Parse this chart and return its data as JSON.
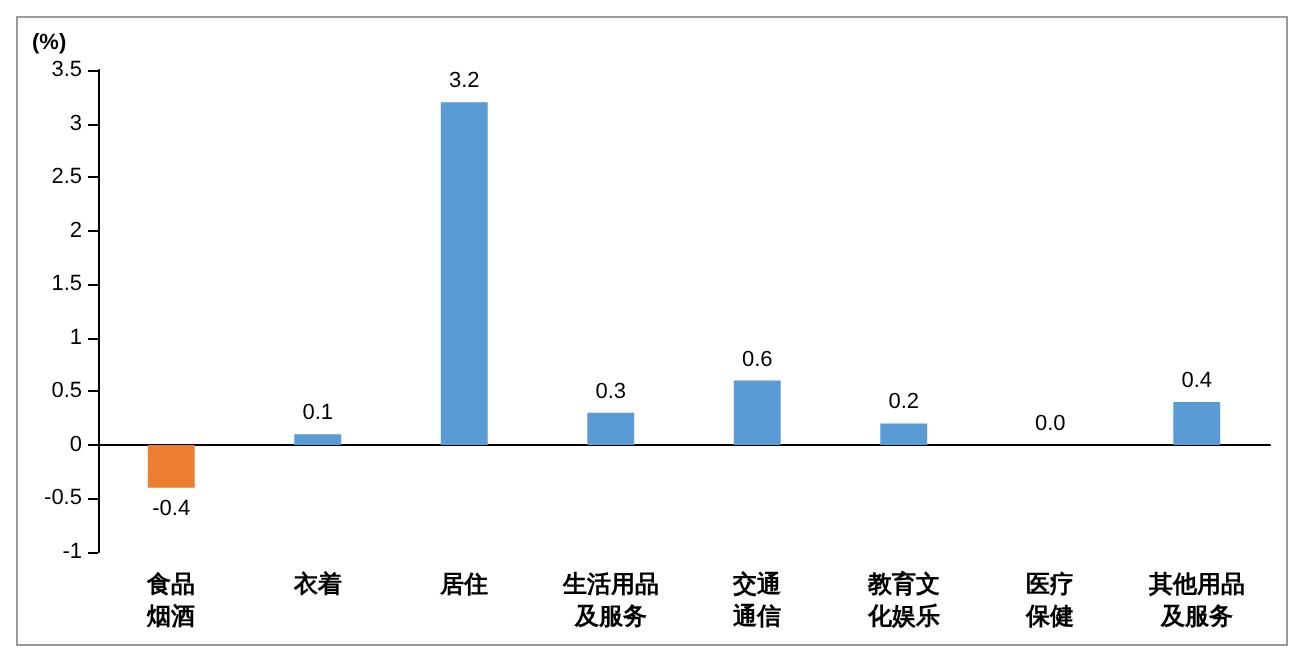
{
  "chart_data": {
    "type": "bar",
    "ylabel": "(%)",
    "categories": [
      "食品烟酒",
      "衣着",
      "居住",
      "生活用品及服务",
      "交通通信",
      "教育文化娱乐",
      "医疗保健",
      "其他用品及服务"
    ],
    "values": [
      -0.4,
      0.1,
      3.2,
      0.3,
      0.6,
      0.2,
      0.0,
      0.4
    ],
    "value_labels": [
      "-0.4",
      "0.1",
      "3.2",
      "0.3",
      "0.6",
      "0.2",
      "0.0",
      "0.4"
    ],
    "colors": [
      "#ed7d31",
      "#5b9bd5",
      "#5b9bd5",
      "#5b9bd5",
      "#5b9bd5",
      "#5b9bd5",
      "#5b9bd5",
      "#5b9bd5"
    ],
    "ylim": [
      -1,
      3.5
    ],
    "yticks": [
      -1,
      -0.5,
      0,
      0.5,
      1,
      1.5,
      2,
      2.5,
      3,
      3.5
    ]
  }
}
